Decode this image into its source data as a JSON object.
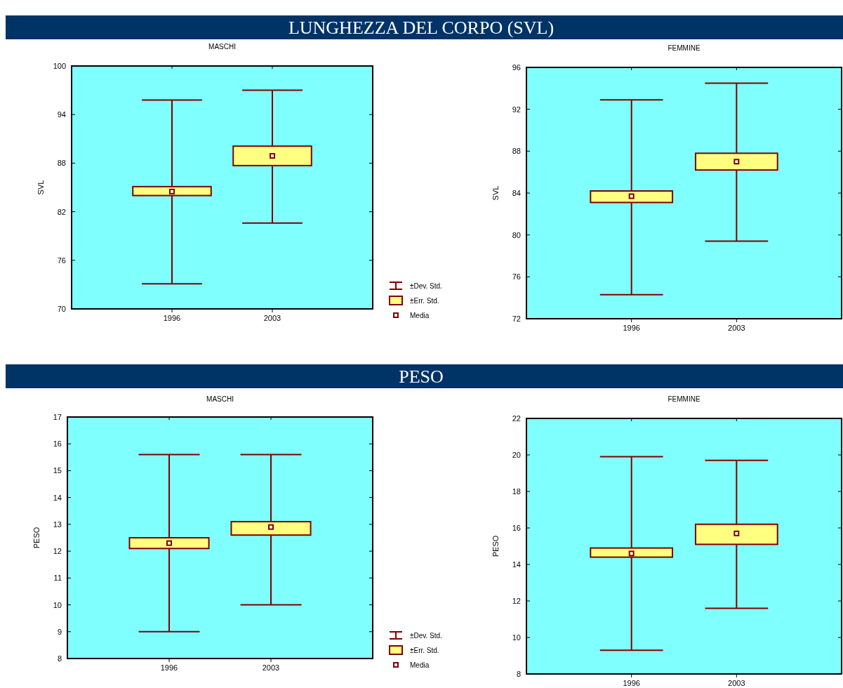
{
  "chart_data": [
    {
      "type": "box",
      "subtitle": "LUNGHEZZA DEL CORPO (SVL)",
      "title": "MASCHI",
      "ylabel": "SVL",
      "categories": [
        "1996",
        "2003"
      ],
      "ylim": [
        70,
        100
      ],
      "yticks": [
        70,
        76,
        82,
        88,
        94,
        100
      ],
      "boxes": [
        {
          "low": 73.1,
          "q1": 84.0,
          "mean": 84.5,
          "q3": 85.1,
          "high": 95.8
        },
        {
          "low": 80.6,
          "q1": 87.7,
          "mean": 88.9,
          "q3": 90.1,
          "high": 97.0
        }
      ],
      "color": "#ffff80",
      "annotations": [
        "±Dev. Std.",
        "±Err. Std.",
        "Media"
      ]
    },
    {
      "type": "box",
      "title": "FEMMINE",
      "ylabel": "SVL",
      "categories": [
        "1996",
        "2003"
      ],
      "ylim": [
        72,
        96
      ],
      "yticks": [
        72,
        76,
        80,
        84,
        88,
        92,
        96
      ],
      "boxes": [
        {
          "low": 74.3,
          "q1": 83.1,
          "mean": 83.7,
          "q3": 84.2,
          "high": 92.9
        },
        {
          "low": 79.4,
          "q1": 86.2,
          "mean": 87.0,
          "q3": 87.8,
          "high": 94.5
        }
      ],
      "color": "#ffff80"
    },
    {
      "type": "box",
      "title": "MASCHI",
      "ylabel": "PESO",
      "categories": [
        "1996",
        "2003"
      ],
      "ylim": [
        8,
        17
      ],
      "yticks": [
        8,
        9,
        10,
        11,
        12,
        13,
        14,
        15,
        16,
        17
      ],
      "boxes": [
        {
          "low": 9.0,
          "q1": 12.1,
          "mean": 12.3,
          "q3": 12.5,
          "high": 15.6
        },
        {
          "low": 10.0,
          "q1": 12.6,
          "mean": 12.9,
          "q3": 13.1,
          "high": 15.6
        }
      ],
      "color": "#ffff80",
      "annotations": [
        "±Dev. Std.",
        "±Err. Std.",
        "Media"
      ]
    },
    {
      "type": "box",
      "subtitle": "PESO",
      "title": "FEMMINE",
      "ylabel": "PESO",
      "categories": [
        "1996",
        "2003"
      ],
      "ylim": [
        8,
        22
      ],
      "yticks": [
        8,
        10,
        12,
        14,
        16,
        18,
        20,
        22
      ],
      "boxes": [
        {
          "low": 9.3,
          "q1": 14.4,
          "mean": 14.6,
          "q3": 14.9,
          "high": 19.9
        },
        {
          "low": 11.6,
          "q1": 15.1,
          "mean": 15.7,
          "q3": 16.2,
          "high": 19.7
        }
      ],
      "color": "#ffff80"
    }
  ]
}
